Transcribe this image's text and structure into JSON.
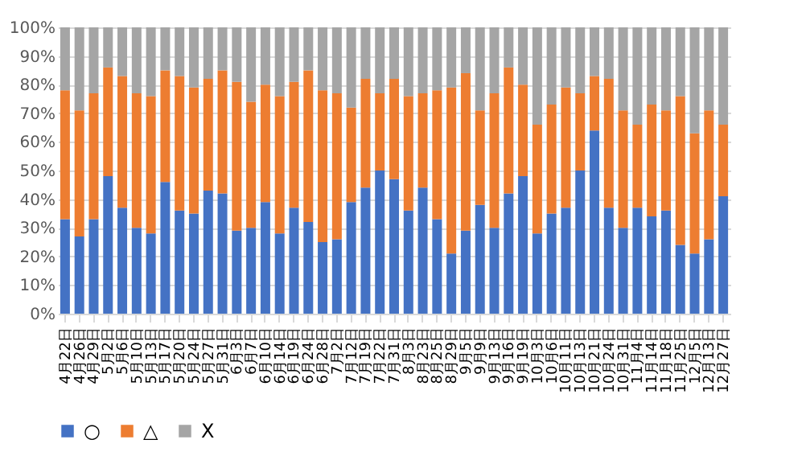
{
  "chart_data": {
    "type": "bar",
    "stacked": true,
    "categories": [
      "4月22日",
      "4月26日",
      "4月29日",
      "5月2日",
      "5月6日",
      "5月10日",
      "5月13日",
      "5月17日",
      "5月20日",
      "5月24日",
      "5月27日",
      "5月31日",
      "6月3日",
      "6月7日",
      "6月10日",
      "6月14日",
      "6月19日",
      "6月24日",
      "6月28日",
      "7月2日",
      "7月12日",
      "7月19日",
      "7月22日",
      "7月31日",
      "8月3日",
      "8月23日",
      "8月25日",
      "8月29日",
      "9月5日",
      "9月9日",
      "9月13日",
      "9月16日",
      "9月19日",
      "10月3日",
      "10月6日",
      "10月11日",
      "10月13日",
      "10月21日",
      "10月24日",
      "10月31日",
      "11月4日",
      "11月14日",
      "11月18日",
      "11月25日",
      "12月5日",
      "12月13日",
      "12月27日"
    ],
    "series": [
      {
        "name": "○",
        "color": "#4472c4",
        "values": [
          33,
          27,
          33,
          48,
          37,
          30,
          28,
          46,
          36,
          35,
          43,
          42,
          29,
          30,
          39,
          28,
          37,
          32,
          25,
          26,
          39,
          44,
          50,
          47,
          36,
          44,
          33,
          21,
          29,
          38,
          30,
          42,
          48,
          28,
          35,
          37,
          50,
          64,
          37,
          30,
          37,
          34,
          36,
          24,
          21,
          26,
          41
        ]
      },
      {
        "name": "△",
        "color": "#ed7d31",
        "values": [
          45,
          44,
          44,
          38,
          46,
          47,
          48,
          39,
          47,
          44,
          39,
          43,
          52,
          44,
          41,
          48,
          44,
          53,
          53,
          51,
          33,
          38,
          27,
          35,
          40,
          33,
          45,
          58,
          55,
          33,
          47,
          44,
          32,
          38,
          38,
          42,
          27,
          19,
          45,
          41,
          29,
          39,
          35,
          52,
          42,
          45,
          25
        ]
      },
      {
        "name": "X",
        "color": "#a5a5a5",
        "values": [
          22,
          29,
          23,
          14,
          17,
          23,
          24,
          15,
          17,
          21,
          18,
          15,
          19,
          26,
          20,
          24,
          19,
          15,
          22,
          23,
          28,
          18,
          23,
          18,
          24,
          23,
          22,
          21,
          16,
          29,
          23,
          14,
          20,
          34,
          27,
          21,
          23,
          17,
          18,
          29,
          34,
          27,
          29,
          24,
          37,
          29,
          34
        ]
      }
    ],
    "ylim": [
      0,
      100
    ],
    "yticks": [
      {
        "value": 0,
        "label": "0%"
      },
      {
        "value": 10,
        "label": "10%"
      },
      {
        "value": 20,
        "label": "20%"
      },
      {
        "value": 30,
        "label": "30%"
      },
      {
        "value": 40,
        "label": "40%"
      },
      {
        "value": 50,
        "label": "50%"
      },
      {
        "value": 60,
        "label": "60%"
      },
      {
        "value": 70,
        "label": "70%"
      },
      {
        "value": 80,
        "label": "80%"
      },
      {
        "value": 90,
        "label": "90%"
      },
      {
        "value": 100,
        "label": "100%"
      }
    ],
    "grid": "y",
    "legend": "bottom"
  }
}
